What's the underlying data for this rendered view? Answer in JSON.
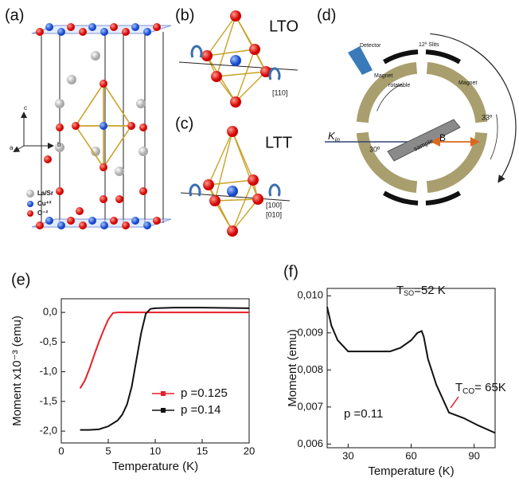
{
  "panels": {
    "a": {
      "label": "(a)",
      "legend": [
        "La/Sr",
        "Cu⁺²",
        "O⁻²"
      ],
      "axes": [
        "c",
        "a",
        "b"
      ]
    },
    "b": {
      "label": "(b)",
      "phase": "LTO",
      "direction": "[110]"
    },
    "c": {
      "label": "(c)",
      "phase": "LTT",
      "directions": [
        "[100]",
        "[010]"
      ]
    },
    "d": {
      "label": "(d)",
      "detector": "Detector",
      "slits": "12º Slits",
      "magnet_left": "Magnet",
      "rotatable": "rotatable",
      "magnet_right": "Magnet",
      "angle_right": "33º",
      "k": "K",
      "k_sub": "in",
      "angle_sample": "30º",
      "sample": "sample",
      "field": "B"
    },
    "e": {
      "label": "(e)"
    },
    "f": {
      "label": "(f)"
    }
  },
  "chart_data": [
    {
      "type": "line",
      "xlabel": "Temperature (K)",
      "ylabel": "Moment x10⁻³ (emu)",
      "xlim": [
        0,
        20
      ],
      "xticks": [
        0,
        5,
        10,
        15,
        20
      ],
      "ylim": [
        -2.2,
        0.23
      ],
      "yticks": [
        {
          "value": -2.0,
          "label": "-2,0"
        },
        {
          "value": -1.5,
          "label": "-1,5"
        },
        {
          "value": -1.0,
          "label": "-1,0"
        },
        {
          "value": -0.5,
          "label": "-0,5"
        },
        {
          "value": 0.0,
          "label": "0,0"
        }
      ],
      "legend": "lower right",
      "series": [
        {
          "name": "p =0.125",
          "color": "#e8202a",
          "x": [
            2,
            2.5,
            3,
            3.5,
            4,
            4.5,
            5,
            5.5,
            6,
            8,
            10,
            15,
            20
          ],
          "values": [
            -1.28,
            -1.15,
            -0.95,
            -0.72,
            -0.5,
            -0.3,
            -0.12,
            -0.01,
            0,
            0,
            0,
            0,
            0
          ]
        },
        {
          "name": "p =0.14",
          "color": "#111111",
          "x": [
            2,
            3,
            4,
            5,
            6,
            6.5,
            7,
            7.5,
            8,
            8.5,
            9,
            9.5,
            10,
            12,
            15,
            20
          ],
          "values": [
            -1.98,
            -1.98,
            -1.97,
            -1.92,
            -1.82,
            -1.72,
            -1.55,
            -1.25,
            -0.8,
            -0.35,
            -0.02,
            0.06,
            0.07,
            0.08,
            0.08,
            0.07
          ]
        }
      ]
    },
    {
      "type": "line",
      "xlabel": "Temperature (K)",
      "ylabel": "Moment (emu)",
      "xlim": [
        20,
        100
      ],
      "xticks": [
        30,
        60,
        90
      ],
      "ylim": [
        0.0059,
        0.0102
      ],
      "yticks": [
        {
          "value": 0.006,
          "label": "0,006"
        },
        {
          "value": 0.007,
          "label": "0,007"
        },
        {
          "value": 0.008,
          "label": "0,008"
        },
        {
          "value": 0.009,
          "label": "0,009"
        },
        {
          "value": 0.01,
          "label": "0,010"
        }
      ],
      "color": "#111111",
      "x": [
        20,
        22,
        25,
        30,
        40,
        50,
        55,
        60,
        63,
        65,
        66,
        68,
        72,
        76,
        78,
        85,
        92,
        100
      ],
      "values": [
        0.0097,
        0.0092,
        0.0088,
        0.0085,
        0.0085,
        0.0085,
        0.0086,
        0.0088,
        0.009,
        0.00905,
        0.0089,
        0.0083,
        0.0076,
        0.0071,
        0.00685,
        0.0067,
        0.0065,
        0.0063
      ],
      "annotations": [
        {
          "main": "T",
          "sub": "SO",
          "rest": "=52 K"
        },
        {
          "main": "T",
          "sub": "CO",
          "rest": "= 65K"
        },
        {
          "text": "p =0.11"
        }
      ]
    }
  ]
}
